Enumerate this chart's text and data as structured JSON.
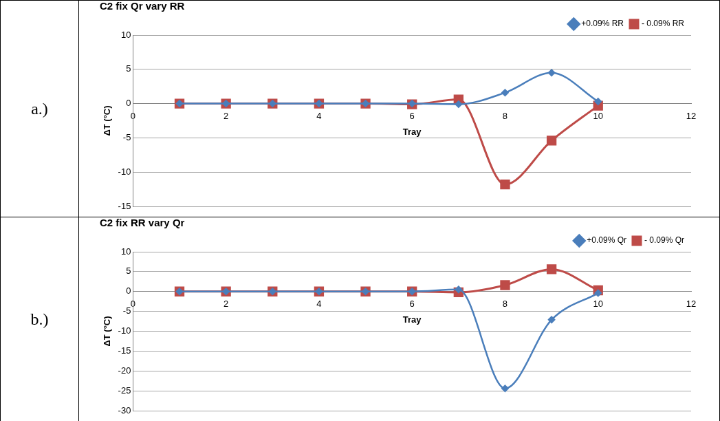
{
  "chart_data": [
    {
      "type": "line",
      "title": "C2 fix Qr vary RR",
      "xlabel": "Tray",
      "ylabel": "ΔT (°C)",
      "annotations": [
        "a.)"
      ],
      "x": [
        1,
        2,
        3,
        4,
        5,
        6,
        7,
        8,
        9,
        10
      ],
      "series": [
        {
          "name": "+0.09% RR",
          "color": "#4a7ebb",
          "marker": "diamond",
          "values": [
            0,
            0,
            0,
            0,
            0,
            0,
            -0.1,
            1.6,
            4.5,
            0.3
          ]
        },
        {
          "name": "- 0.09% RR",
          "color": "#be4b48",
          "marker": "square",
          "values": [
            0,
            0,
            0,
            0,
            0,
            -0.1,
            0.6,
            -11.8,
            -5.4,
            -0.3
          ]
        }
      ],
      "xlim": [
        0,
        12
      ],
      "xticks": [
        0,
        2,
        4,
        6,
        8,
        10,
        12
      ],
      "ylim": [
        -15,
        10
      ],
      "yticks": [
        -15,
        -10,
        -5,
        0,
        5,
        10
      ],
      "grid": "y",
      "legend": "top right"
    },
    {
      "type": "line",
      "title": "C2 fix RR vary Qr",
      "xlabel": "Tray",
      "ylabel": "ΔT (°C)",
      "annotations": [
        "b.)"
      ],
      "x": [
        1,
        2,
        3,
        4,
        5,
        6,
        7,
        8,
        9,
        10
      ],
      "series": [
        {
          "name": "+0.09% Qr",
          "color": "#4a7ebb",
          "marker": "diamond",
          "values": [
            0,
            0,
            0,
            0,
            0,
            0,
            0.5,
            -24.4,
            -7.1,
            -0.4
          ]
        },
        {
          "name": "- 0.09% Qr",
          "color": "#be4b48",
          "marker": "square",
          "values": [
            0,
            0,
            0,
            0,
            0,
            0,
            -0.2,
            1.6,
            5.6,
            0.3
          ]
        }
      ],
      "xlim": [
        0,
        12
      ],
      "xticks": [
        0,
        2,
        4,
        6,
        8,
        10,
        12
      ],
      "ylim": [
        -30,
        10
      ],
      "yticks": [
        -30,
        -25,
        -20,
        -15,
        -10,
        -5,
        0,
        5,
        10
      ],
      "grid": "y",
      "legend": "top right"
    }
  ]
}
